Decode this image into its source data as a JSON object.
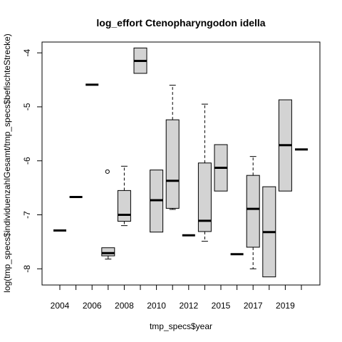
{
  "chart_data": {
    "type": "boxplot",
    "title": "log_effort Ctenopharyngodon idella",
    "xlabel": "tmp_specs$year",
    "ylabel": "log(tmp_specs$individuenzahlGesamt/tmp_specs$befischteStrecke)",
    "ylim": [
      -8.3,
      -3.8
    ],
    "yticks": [
      -8,
      -7,
      -6,
      -5,
      -4
    ],
    "x_tick_labels": [
      "2004",
      "2006",
      "2008",
      "2010",
      "2012",
      "2015",
      "2017",
      "2019"
    ],
    "x_tick_label_indices": [
      1,
      3,
      5,
      7,
      9,
      11,
      13,
      15
    ],
    "grid": false,
    "legend": "none",
    "box_fill": "#d3d3d3",
    "boxes": [
      {
        "index": 1,
        "min": -7.29,
        "q1": -7.29,
        "median": -7.29,
        "q3": -7.29,
        "max": -7.29,
        "outliers": []
      },
      {
        "index": 2,
        "min": -6.67,
        "q1": -6.67,
        "median": -6.67,
        "q3": -6.67,
        "max": -6.67,
        "outliers": []
      },
      {
        "index": 3,
        "min": -4.59,
        "q1": -4.59,
        "median": -4.59,
        "q3": -4.59,
        "max": -4.59,
        "outliers": []
      },
      {
        "index": 4,
        "min": -7.82,
        "q1": -7.76,
        "median": -7.71,
        "q3": -7.61,
        "max": -7.61,
        "outliers": [
          -6.2
        ]
      },
      {
        "index": 5,
        "min": -7.2,
        "q1": -7.12,
        "median": -7.0,
        "q3": -6.55,
        "max": -6.1,
        "outliers": []
      },
      {
        "index": 6,
        "min": -4.38,
        "q1": -4.38,
        "median": -4.15,
        "q3": -3.91,
        "max": -3.91,
        "outliers": []
      },
      {
        "index": 7,
        "min": -7.32,
        "q1": -7.32,
        "median": -6.73,
        "q3": -6.17,
        "max": -6.17,
        "outliers": []
      },
      {
        "index": 8,
        "min": -6.9,
        "q1": -6.88,
        "median": -6.37,
        "q3": -5.24,
        "max": -4.6,
        "outliers": []
      },
      {
        "index": 9,
        "min": -7.38,
        "q1": -7.38,
        "median": -7.38,
        "q3": -7.38,
        "max": -7.38,
        "outliers": []
      },
      {
        "index": 10,
        "min": -7.49,
        "q1": -7.31,
        "median": -7.11,
        "q3": -6.04,
        "max": -4.95,
        "outliers": []
      },
      {
        "index": 11,
        "min": -6.56,
        "q1": -6.56,
        "median": -6.13,
        "q3": -5.7,
        "max": -5.7,
        "outliers": []
      },
      {
        "index": 12,
        "min": -7.73,
        "q1": -7.73,
        "median": -7.73,
        "q3": -7.73,
        "max": -7.73,
        "outliers": []
      },
      {
        "index": 13,
        "min": -8.0,
        "q1": -7.6,
        "median": -6.89,
        "q3": -6.27,
        "max": -5.92,
        "outliers": []
      },
      {
        "index": 14,
        "min": -8.15,
        "q1": -8.15,
        "median": -7.32,
        "q3": -6.48,
        "max": -6.48,
        "outliers": []
      },
      {
        "index": 15,
        "min": -6.56,
        "q1": -6.56,
        "median": -5.71,
        "q3": -4.87,
        "max": -4.87,
        "outliers": []
      },
      {
        "index": 16,
        "min": -5.79,
        "q1": -5.79,
        "median": -5.79,
        "q3": -5.79,
        "max": -5.79,
        "outliers": []
      }
    ]
  }
}
